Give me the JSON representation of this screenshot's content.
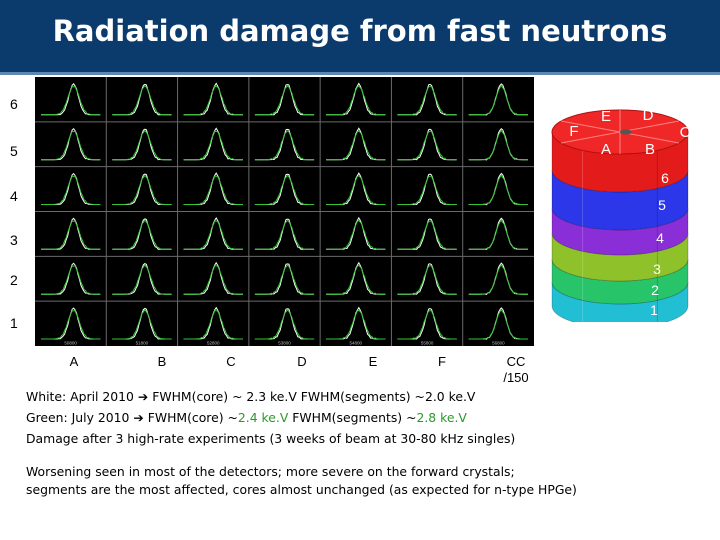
{
  "title": "Radiation damage from fast neutrons",
  "colors": {
    "title_bar": "#0b3a6c",
    "grid_bg": "#000000",
    "grid_lines": "#6a6a6a",
    "spectrum_white": "#ffffff",
    "spectrum_green": "#35c635",
    "highlight_green": "#2a9a2a"
  },
  "grid": {
    "row_labels": [
      "6",
      "5",
      "4",
      "3",
      "2",
      "1"
    ],
    "column_labels": [
      "A",
      "B",
      "C",
      "D",
      "E",
      "F",
      "CC"
    ],
    "cc_scale": "/150",
    "x_ticks": [
      "50800",
      "51800",
      "52800",
      "53800",
      "54800",
      "55800",
      "56800"
    ]
  },
  "detector": {
    "top_labels": [
      "E",
      "D",
      "F",
      "C",
      "A",
      "B"
    ],
    "layer_labels": [
      "6",
      "5",
      "4",
      "3",
      "2",
      "1"
    ],
    "layer_colors": [
      "#e31b1b",
      "#2b37e8",
      "#8a2ed8",
      "#8fc22a",
      "#27c46a",
      "#22bfd4"
    ]
  },
  "notes": {
    "white_line": {
      "lead": "White:  April 2010",
      "core": "FWHM(core) ~ 2.3 ke.V",
      "seg": "FWHM(segments) ~2.0 ke.V"
    },
    "green_line": {
      "lead": "Green:  July   2010",
      "core_prefix": "FWHM(core) ~",
      "core_value": "2.4 ke.V",
      "seg_prefix": "FWHM(segments)  ~",
      "seg_value": "2.8 ke.V"
    },
    "damage_line": "Damage after 3 high-rate experiments  (3 weeks of beam at 30-80 kHz singles)",
    "worsening_line1": "Worsening seen in most of the detectors; more severe on the forward crystals;",
    "worsening_line2": "segments  are the most affected, cores almost unchanged  (as expected for n-type HPGe)"
  }
}
